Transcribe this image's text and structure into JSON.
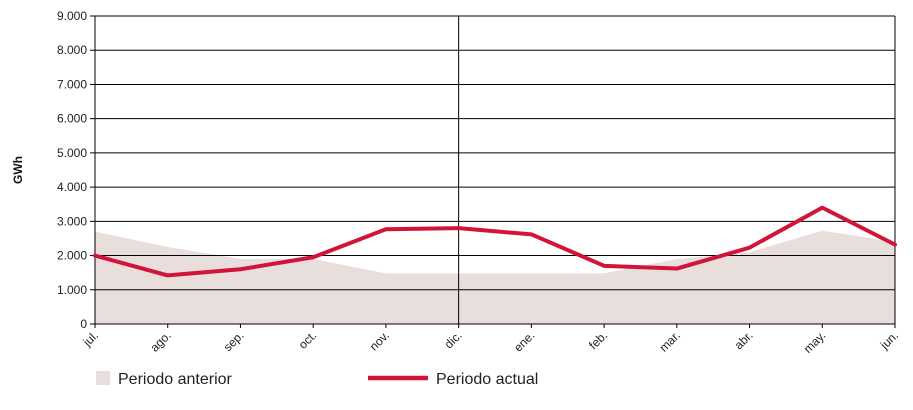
{
  "chart_data": {
    "type": "line",
    "ylabel": "GWh",
    "xlabel": "",
    "title": "",
    "categories": [
      "jul.",
      "ago.",
      "sep.",
      "oct.",
      "nov.",
      "dic.",
      "ene.",
      "feb.",
      "mar.",
      "abr.",
      "may.",
      "jun."
    ],
    "ylim": [
      0,
      9000
    ],
    "yticks": [
      "0",
      "1.000",
      "2.000",
      "3.000",
      "4.000",
      "5.000",
      "6.000",
      "7.000",
      "8.000",
      "9.000"
    ],
    "ytick_values": [
      0,
      1000,
      2000,
      3000,
      4000,
      5000,
      6000,
      7000,
      8000,
      9000
    ],
    "grid": "horizontal",
    "legend_position": "bottom",
    "separator_category": "dic.",
    "series": [
      {
        "name": "Periodo anterior",
        "kind": "area",
        "color": "#e8dedb",
        "values": [
          2700,
          2250,
          1900,
          1900,
          1480,
          1480,
          1480,
          1480,
          1900,
          2100,
          2730,
          2400
        ]
      },
      {
        "name": "Periodo actual",
        "kind": "line",
        "color": "#d2143a",
        "values": [
          2000,
          1420,
          1600,
          1950,
          2770,
          2800,
          2620,
          1700,
          1620,
          2230,
          3400,
          2320
        ]
      }
    ]
  }
}
